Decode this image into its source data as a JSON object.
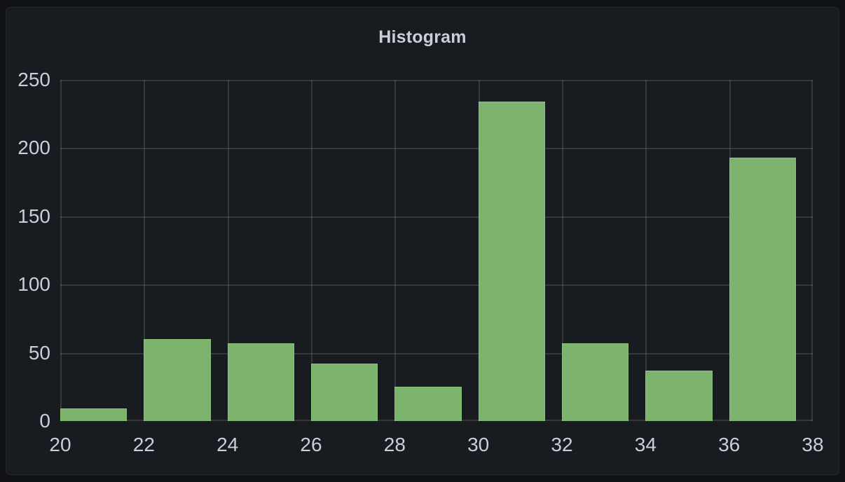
{
  "panel": {
    "title": "Histogram"
  },
  "colors": {
    "page_background": "#111217",
    "panel_background": "#181b1f",
    "panel_border": "#25272e",
    "text": "#ccccdc",
    "grid": "rgba(204,204,220,0.16)",
    "bar_fill": "#7db46d",
    "bar_border": "#8cc17b"
  },
  "chart_data": {
    "type": "bar",
    "subtype": "histogram",
    "title": "Histogram",
    "xlabel": "",
    "ylabel": "",
    "legend": "none",
    "grid": true,
    "xlim": [
      20,
      38
    ],
    "ylim": [
      0,
      250
    ],
    "x_ticks": [
      20,
      22,
      24,
      26,
      28,
      30,
      32,
      34,
      36,
      38
    ],
    "y_ticks": [
      0,
      50,
      100,
      150,
      200,
      250
    ],
    "bin_width": 2,
    "bar_width_fraction": 0.8,
    "bin_starts": [
      20,
      22,
      24,
      26,
      28,
      30,
      32,
      34,
      36
    ],
    "values": [
      9,
      60,
      57,
      42,
      25,
      234,
      57,
      37,
      193
    ]
  }
}
